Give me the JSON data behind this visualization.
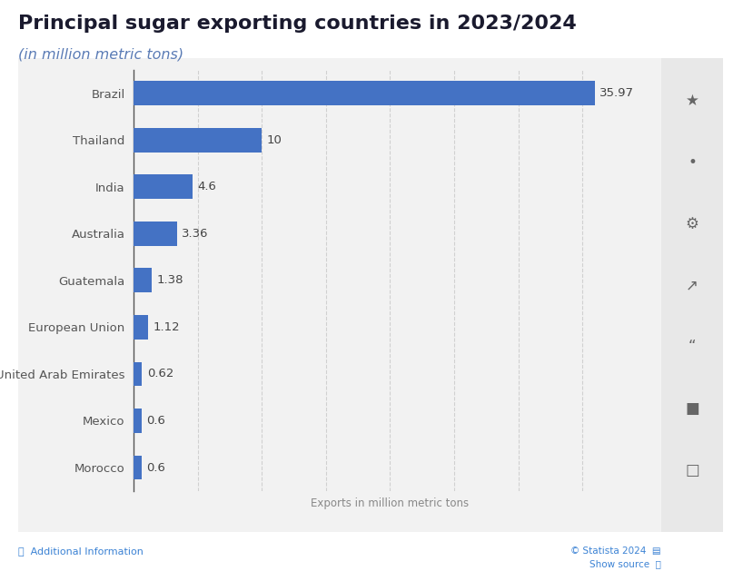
{
  "title": "Principal sugar exporting countries in 2023/2024",
  "subtitle": "(in million metric tons)",
  "xlabel": "Exports in million metric tons",
  "countries": [
    "Morocco",
    "Mexico",
    "United Arab Emirates",
    "European Union",
    "Guatemala",
    "Australia",
    "India",
    "Thailand",
    "Brazil"
  ],
  "values": [
    0.6,
    0.6,
    0.62,
    1.12,
    1.38,
    3.36,
    4.6,
    10,
    35.97
  ],
  "bar_color": "#4472c4",
  "chart_bg": "#f2f2f2",
  "outer_bg": "#ffffff",
  "title_color": "#1a1a2e",
  "subtitle_color": "#5a7bb5",
  "label_color": "#555555",
  "value_color": "#444444",
  "grid_color": "#d0d0d0",
  "xlabel_color": "#888888",
  "sidebar_bg": "#e8e8e8",
  "xlim": [
    0,
    40
  ],
  "title_fontsize": 16,
  "subtitle_fontsize": 11.5,
  "label_fontsize": 9.5,
  "value_fontsize": 9.5,
  "xlabel_fontsize": 8.5,
  "bar_height": 0.52
}
